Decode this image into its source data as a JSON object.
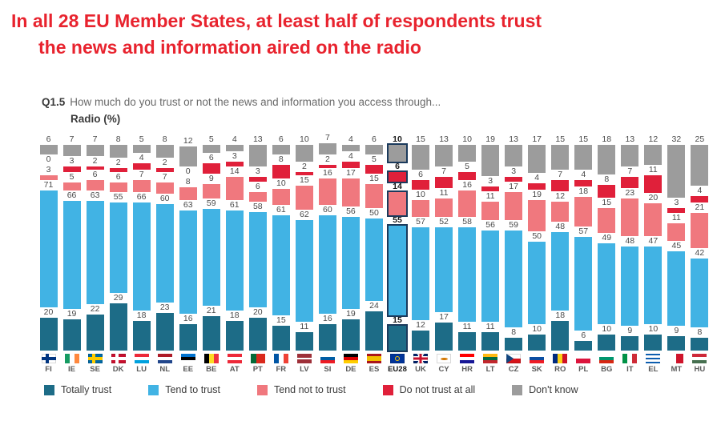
{
  "title": {
    "line1": "In all 28 EU Member States, at least half of respondents trust",
    "line2": "the news and information aired on the radio"
  },
  "question": {
    "code": "Q1.5",
    "text": "How much do you trust or not the news and information you access through...",
    "subtitle": "Radio (%)"
  },
  "colors": {
    "title_red": "#e8232e",
    "highlight_outline": "#1b3a5c"
  },
  "chart_data": {
    "type": "bar",
    "stacked": true,
    "title": "Radio (%)",
    "ylim": [
      0,
      100
    ],
    "legend_position": "bottom",
    "highlight": "EU28",
    "categories": [
      "FI",
      "IE",
      "SE",
      "DK",
      "LU",
      "NL",
      "EE",
      "BE",
      "AT",
      "PT",
      "FR",
      "LV",
      "SI",
      "DE",
      "ES",
      "EU28",
      "UK",
      "CY",
      "HR",
      "LT",
      "CZ",
      "SK",
      "RO",
      "PL",
      "BG",
      "IT",
      "EL",
      "MT",
      "HU"
    ],
    "series": [
      {
        "key": "totally_trust",
        "name": "Totally trust",
        "color": "#1d6c87",
        "values": [
          20,
          19,
          22,
          29,
          18,
          23,
          16,
          21,
          18,
          20,
          15,
          11,
          16,
          19,
          24,
          15,
          12,
          17,
          11,
          11,
          8,
          10,
          18,
          6,
          10,
          9,
          10,
          9,
          8
        ]
      },
      {
        "key": "tend_to_trust",
        "name": "Tend to trust",
        "color": "#41b3e4",
        "values": [
          71,
          66,
          63,
          55,
          66,
          60,
          63,
          59,
          61,
          58,
          61,
          62,
          60,
          56,
          50,
          55,
          57,
          52,
          58,
          56,
          59,
          50,
          48,
          57,
          49,
          48,
          47,
          45,
          42
        ]
      },
      {
        "key": "tend_not_to_trust",
        "name": "Tend not to trust",
        "color": "#f0787e",
        "values": [
          3,
          5,
          6,
          6,
          7,
          7,
          8,
          9,
          14,
          6,
          10,
          15,
          16,
          17,
          15,
          14,
          10,
          11,
          16,
          11,
          17,
          19,
          12,
          18,
          15,
          23,
          20,
          11,
          21
        ]
      },
      {
        "key": "do_not_trust_at_all",
        "name": "Do not trust at all",
        "color": "#e0203a",
        "values": [
          0,
          3,
          2,
          2,
          4,
          2,
          0,
          6,
          3,
          3,
          8,
          2,
          2,
          4,
          5,
          6,
          6,
          7,
          5,
          3,
          3,
          4,
          7,
          4,
          8,
          7,
          11,
          3,
          4
        ]
      },
      {
        "key": "dont_know",
        "name": "Don't know",
        "color": "#9c9c9c",
        "values": [
          6,
          7,
          7,
          8,
          5,
          8,
          12,
          5,
          4,
          13,
          6,
          10,
          7,
          4,
          6,
          10,
          15,
          13,
          10,
          19,
          13,
          17,
          15,
          15,
          18,
          13,
          12,
          32,
          25
        ]
      }
    ]
  },
  "flags": {
    "FI": {
      "type": "cross",
      "bg": "#ffffff",
      "cross": "#003580"
    },
    "IE": {
      "type": "v",
      "colors": [
        "#169b62",
        "#ffffff",
        "#ff883e"
      ]
    },
    "SE": {
      "type": "cross",
      "bg": "#006aa7",
      "cross": "#fecc00"
    },
    "DK": {
      "type": "cross",
      "bg": "#c8102e",
      "cross": "#ffffff"
    },
    "LU": {
      "type": "h",
      "colors": [
        "#ed2939",
        "#ffffff",
        "#00a1de"
      ]
    },
    "NL": {
      "type": "h",
      "colors": [
        "#ae1c28",
        "#ffffff",
        "#21468b"
      ]
    },
    "EE": {
      "type": "h",
      "colors": [
        "#0072ce",
        "#000000",
        "#ffffff"
      ]
    },
    "BE": {
      "type": "v",
      "colors": [
        "#000000",
        "#fdda24",
        "#ef3340"
      ]
    },
    "AT": {
      "type": "h",
      "colors": [
        "#ed2939",
        "#ffffff",
        "#ed2939"
      ]
    },
    "PT": {
      "type": "v",
      "colors": [
        "#046a38",
        "#da291c"
      ],
      "weights": [
        2,
        3
      ]
    },
    "FR": {
      "type": "v",
      "colors": [
        "#0055a4",
        "#ffffff",
        "#ef4135"
      ]
    },
    "LV": {
      "type": "h",
      "colors": [
        "#9e3039",
        "#ffffff",
        "#9e3039"
      ],
      "weights": [
        2,
        1,
        2
      ]
    },
    "SI": {
      "type": "h",
      "colors": [
        "#ffffff",
        "#005da4",
        "#ed1c24"
      ]
    },
    "DE": {
      "type": "h",
      "colors": [
        "#000000",
        "#dd0000",
        "#ffce00"
      ]
    },
    "ES": {
      "type": "h",
      "colors": [
        "#aa151b",
        "#f1bf00",
        "#aa151b"
      ],
      "weights": [
        1,
        2,
        1
      ]
    },
    "EU28": {
      "type": "eu",
      "bg": "#003399",
      "star": "#ffcc00"
    },
    "UK": {
      "type": "uk"
    },
    "CY": {
      "type": "cy",
      "bg": "#ffffff",
      "map": "#d47600"
    },
    "HR": {
      "type": "h",
      "colors": [
        "#ff0000",
        "#ffffff",
        "#171796"
      ]
    },
    "LT": {
      "type": "h",
      "colors": [
        "#fdb913",
        "#006a44",
        "#c1272d"
      ]
    },
    "CZ": {
      "type": "cz",
      "top": "#ffffff",
      "bottom": "#d7141a",
      "triangle": "#11457e"
    },
    "SK": {
      "type": "h",
      "colors": [
        "#ffffff",
        "#0b4ea2",
        "#ee1c25"
      ]
    },
    "RO": {
      "type": "v",
      "colors": [
        "#002b7f",
        "#fcd116",
        "#ce1126"
      ]
    },
    "PL": {
      "type": "h",
      "colors": [
        "#ffffff",
        "#dc143c"
      ]
    },
    "BG": {
      "type": "h",
      "colors": [
        "#ffffff",
        "#00966e",
        "#d62612"
      ]
    },
    "IT": {
      "type": "v",
      "colors": [
        "#009246",
        "#ffffff",
        "#ce2b37"
      ]
    },
    "EL": {
      "type": "h",
      "colors": [
        "#0d5eaf",
        "#ffffff",
        "#0d5eaf",
        "#ffffff",
        "#0d5eaf"
      ]
    },
    "MT": {
      "type": "v",
      "colors": [
        "#ffffff",
        "#cf142b"
      ]
    },
    "HU": {
      "type": "h",
      "colors": [
        "#ce2939",
        "#ffffff",
        "#477050"
      ]
    }
  }
}
